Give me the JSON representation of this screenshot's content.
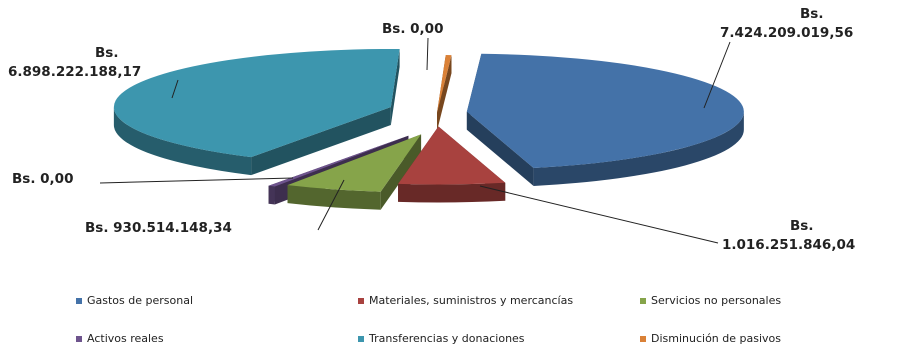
{
  "chart_data": {
    "type": "pie",
    "style": "3d-exploded",
    "title": "",
    "legend_placement": "bottom",
    "series": [
      {
        "name": "Gastos de personal",
        "value": 7424209019.56,
        "label_line1": "Bs.",
        "label_line2": "7.424.209.019,56",
        "color": "#4472A8"
      },
      {
        "name": "Materiales, suministros y mercancías",
        "value": 1016251846.04,
        "label_line1": "Bs.",
        "label_line2": "1.016.251.846,04",
        "color": "#A8423F"
      },
      {
        "name": "Servicios no personales",
        "value": 930514148.34,
        "label_line1": "Bs. 930.514.148,34",
        "label_line2": "",
        "color": "#86A44A"
      },
      {
        "name": "Activos reales",
        "value": 0.0,
        "label_line1": "Bs. 0,00",
        "label_line2": "",
        "color": "#6E548D"
      },
      {
        "name": "Transferencias y donaciones",
        "value": 6898222188.17,
        "label_line1": "Bs.",
        "label_line2": "6.898.222.188,17",
        "color": "#3D96AE"
      },
      {
        "name": "Disminución de pasivos",
        "value": 0.0,
        "label_line1": "Bs. 0,00",
        "label_line2": "",
        "color": "#DA8137"
      }
    ]
  }
}
